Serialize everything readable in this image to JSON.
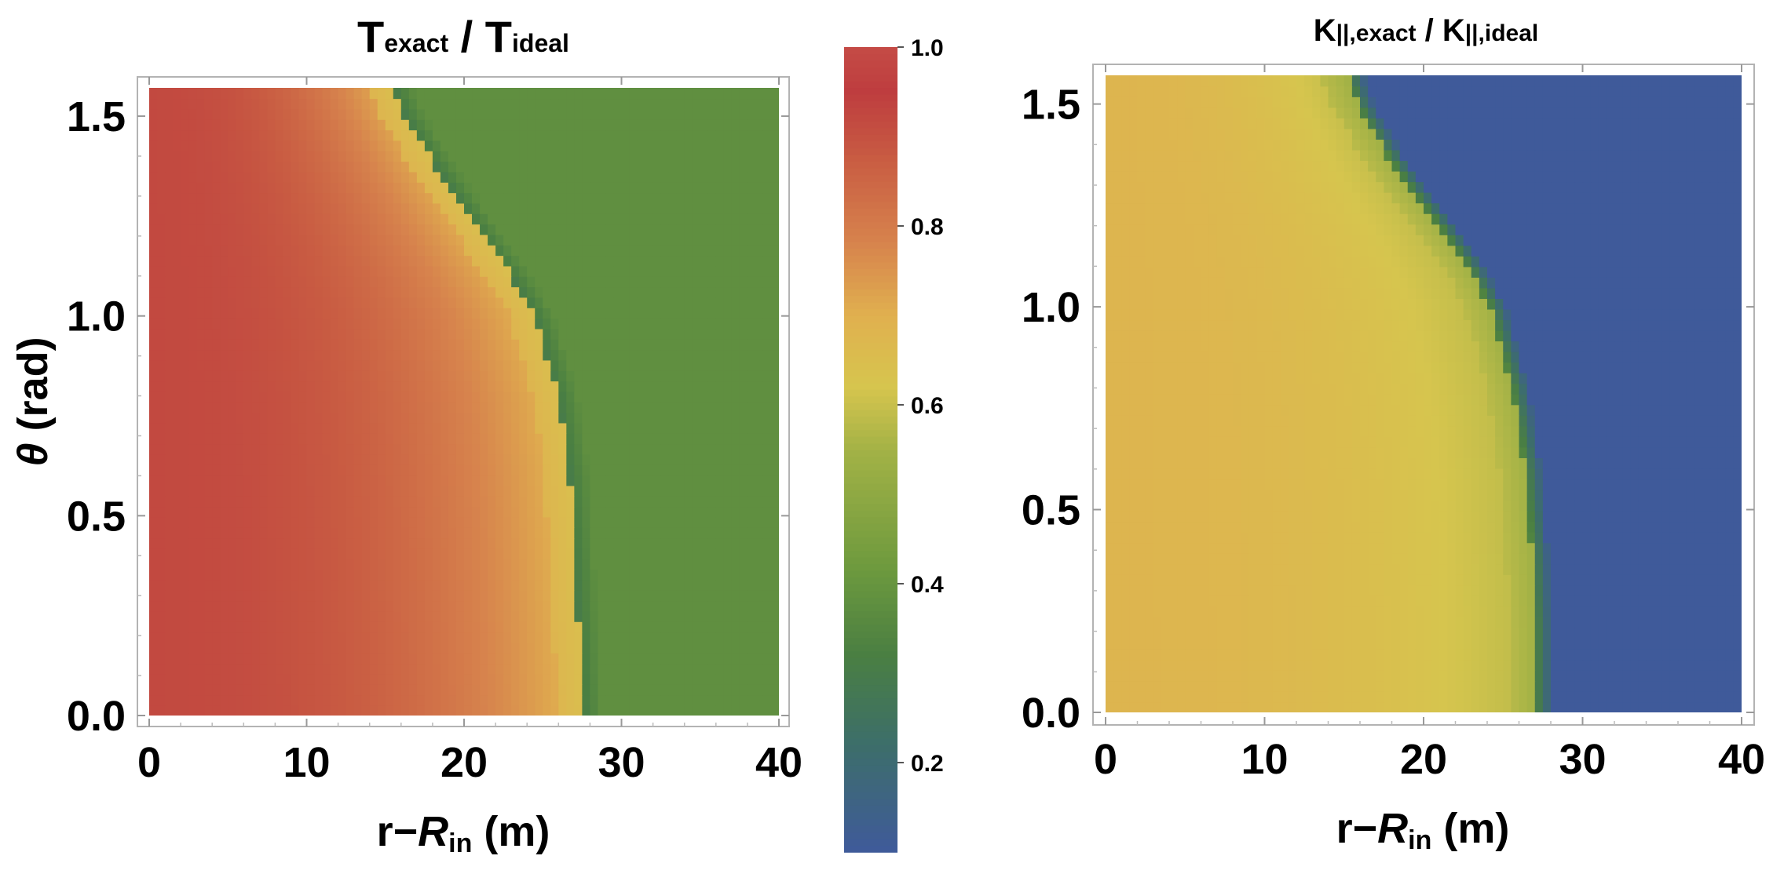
{
  "chart_data": [
    {
      "type": "heatmap",
      "title": {
        "main": "T",
        "sub_main": "exact",
        "sep": " / ",
        "den": "T",
        "sub_den": "ideal"
      },
      "xlabel": {
        "pre": "r",
        "dash": "−",
        "sym": "R",
        "sub": "in",
        "unit": " (m)"
      },
      "ylabel": {
        "sym": "θ",
        "unit": " (rad)"
      },
      "xlim": [
        0,
        40
      ],
      "ylim": [
        0,
        1.5708
      ],
      "xticks": [
        "0",
        "10",
        "20",
        "30",
        "40"
      ],
      "yticks": [
        "0.0",
        "0.5",
        "1.0",
        "1.5"
      ],
      "boundary": {
        "theta": [
          0.0,
          0.2,
          0.4,
          0.6,
          0.8,
          1.0,
          1.1,
          1.2,
          1.3,
          1.4,
          1.5,
          1.5708
        ],
        "r": [
          27.5,
          27.3,
          27.0,
          26.7,
          26.0,
          24.5,
          23.0,
          21.2,
          19.5,
          17.8,
          16.3,
          15.5
        ]
      },
      "inner_value_range": [
        0.92,
        0.68
      ],
      "outer_value": 0.38,
      "colormap": "yellow-red diverging (0.1–1.0)"
    },
    {
      "type": "heatmap",
      "title": {
        "main": "K",
        "sub_main": "||,exact",
        "sep": " / ",
        "den": "K",
        "sub_den": "||,ideal"
      },
      "xlabel": {
        "pre": "r",
        "dash": "−",
        "sym": "R",
        "sub": "in",
        "unit": " (m)"
      },
      "xlim": [
        0,
        40
      ],
      "ylim": [
        0,
        1.5708
      ],
      "xticks": [
        "0",
        "10",
        "20",
        "30",
        "40"
      ],
      "yticks": [
        "0.0",
        "0.5",
        "1.0",
        "1.5"
      ],
      "boundary": {
        "theta": [
          0.0,
          0.2,
          0.4,
          0.6,
          0.8,
          1.0,
          1.1,
          1.2,
          1.3,
          1.4,
          1.5,
          1.5708
        ],
        "r": [
          27.0,
          27.0,
          26.8,
          26.4,
          25.6,
          24.2,
          22.8,
          21.0,
          19.0,
          17.3,
          15.8,
          15.2
        ]
      },
      "inner_value_range": [
        0.68,
        0.58
      ],
      "outer_value": 0.1,
      "colormap": "shared colorbar"
    }
  ],
  "colorbar": {
    "range": [
      0.1,
      1.0
    ],
    "ticks": [
      "0.2",
      "0.4",
      "0.6",
      "0.8",
      "1.0"
    ],
    "stops": [
      {
        "v": 0.1,
        "color": "#3f5a9a"
      },
      {
        "v": 0.22,
        "color": "#3d6e6a"
      },
      {
        "v": 0.32,
        "color": "#4a7f42"
      },
      {
        "v": 0.42,
        "color": "#6e9a3e"
      },
      {
        "v": 0.55,
        "color": "#a3b246"
      },
      {
        "v": 0.62,
        "color": "#d6c54e"
      },
      {
        "v": 0.7,
        "color": "#e0b04f"
      },
      {
        "v": 0.78,
        "color": "#d7844d"
      },
      {
        "v": 0.88,
        "color": "#c85a42"
      },
      {
        "v": 0.95,
        "color": "#be3d3f"
      },
      {
        "v": 1.0,
        "color": "#c44b45"
      }
    ]
  }
}
